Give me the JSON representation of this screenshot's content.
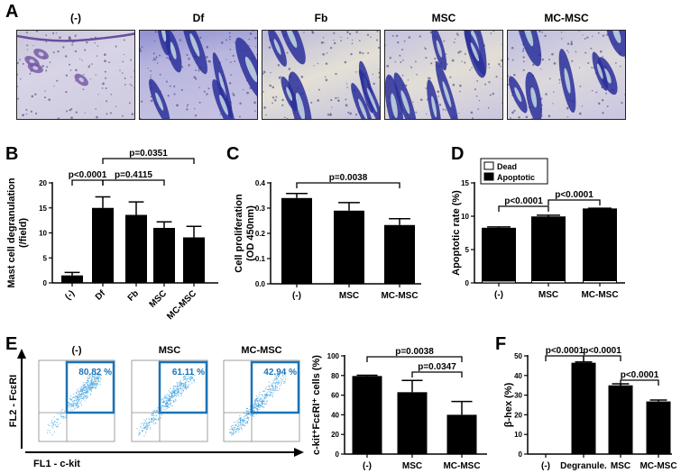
{
  "panel_labels": [
    "A",
    "B",
    "C",
    "D",
    "E",
    "F"
  ],
  "panel_a": {
    "titles": [
      "(-)",
      "Df",
      "Fb",
      "MSC",
      "MC-MSC"
    ]
  },
  "chart_data": [
    {
      "id": "B",
      "type": "bar",
      "categories": [
        "(-)",
        "Df",
        "Fb",
        "MSC",
        "MC-MSC"
      ],
      "values": [
        1.5,
        15.0,
        13.6,
        11.0,
        9.1
      ],
      "errors": [
        0.6,
        2.2,
        2.6,
        1.2,
        2.2
      ],
      "ylabel": "Mast cell degranulation",
      "ylabel2": "(/field)",
      "ylim": [
        0,
        20
      ],
      "yticks": [
        "0",
        "5",
        "10",
        "15",
        "20"
      ],
      "rotated_ticks": true,
      "annotations": [
        {
          "text": "p<0.0001",
          "from": 0,
          "to": 1,
          "level": 1
        },
        {
          "text": "p=0.4115",
          "from": 1,
          "to": 3,
          "level": 1
        },
        {
          "text": "p=0.0351",
          "from": 1,
          "to": 4,
          "level": 2
        }
      ]
    },
    {
      "id": "C",
      "type": "bar",
      "categories": [
        "(-)",
        "MSC",
        "MC-MSC"
      ],
      "values": [
        0.34,
        0.29,
        0.233
      ],
      "errors": [
        0.018,
        0.032,
        0.025
      ],
      "ylabel": "Cell proliferation",
      "ylabel2": "(OD 450nm)",
      "ylim": [
        0,
        0.4
      ],
      "yticks": [
        "0.0",
        "0.1",
        "0.2",
        "0.3",
        "0.4"
      ],
      "annotations": [
        {
          "text": "p=0.0038",
          "from": 0,
          "to": 2,
          "level": 1
        }
      ]
    },
    {
      "id": "D",
      "type": "bar",
      "stacked": true,
      "categories": [
        "(-)",
        "MSC",
        "MC-MSC"
      ],
      "series": [
        {
          "name": "Dead",
          "values": [
            0.3,
            0.35,
            0.35
          ],
          "color": "#ffffff"
        },
        {
          "name": "Apoptotic",
          "values": [
            7.9,
            9.55,
            10.75
          ],
          "color": "#000000"
        }
      ],
      "errors": [
        0.2,
        0.25,
        0.1
      ],
      "ylabel": "Apoptotic rate (%)",
      "ylim": [
        0,
        15
      ],
      "yticks": [
        "0",
        "5",
        "10",
        "15"
      ],
      "legend": "top-left",
      "annotations": [
        {
          "text": "p<0.0001",
          "from": 0,
          "to": 1,
          "level": 1
        },
        {
          "text": "p<0.0001",
          "from": 1,
          "to": 2,
          "level": 2
        }
      ]
    },
    {
      "id": "E",
      "type": "bar",
      "categories": [
        "(-)",
        "MSC",
        "MC-MSC"
      ],
      "values": [
        79.5,
        63,
        40
      ],
      "errors": [
        0.8,
        12,
        13.5
      ],
      "ylabel": "c-kit⁺FcεRI⁺ cells (%)",
      "ylim": [
        0,
        100
      ],
      "yticks": [
        "0",
        "20",
        "40",
        "60",
        "80",
        "100"
      ],
      "annotations": [
        {
          "text": "p=0.0038",
          "from": 0,
          "to": 2,
          "level": 2
        },
        {
          "text": "p=0.0347",
          "from": 1,
          "to": 2,
          "level": 1
        }
      ]
    },
    {
      "id": "F",
      "type": "bar",
      "categories": [
        "(-)",
        "Degranule.",
        "MSC",
        "MC-MSC"
      ],
      "values": [
        0,
        46.5,
        35,
        26.8
      ],
      "errors": [
        0,
        0.4,
        0.8,
        0.7
      ],
      "ylabel": "β-hex (%)",
      "ylim": [
        0,
        50
      ],
      "yticks": [
        "0",
        "10",
        "20",
        "30",
        "40",
        "50"
      ],
      "annotations": [
        {
          "text": "p<0.0001",
          "from": 0,
          "to": 1,
          "level": 2
        },
        {
          "text": "p<0.0001",
          "from": 1,
          "to": 2,
          "level": 2
        },
        {
          "text": "p<0.0001",
          "from": 2,
          "to": 3,
          "level": 1
        }
      ]
    }
  ],
  "flow": {
    "plots": [
      {
        "title": "(-)",
        "gate_percent": "80.82 %"
      },
      {
        "title": "MSC",
        "gate_percent": "61.11 %"
      },
      {
        "title": "MC-MSC",
        "gate_percent": "42.94 %"
      }
    ],
    "y_axis_label": "FL2 - FcεRI",
    "x_axis_label": "FL1 - c-kit",
    "gate_color": "#1a73b8",
    "dot_color": "#3aa0e0"
  }
}
